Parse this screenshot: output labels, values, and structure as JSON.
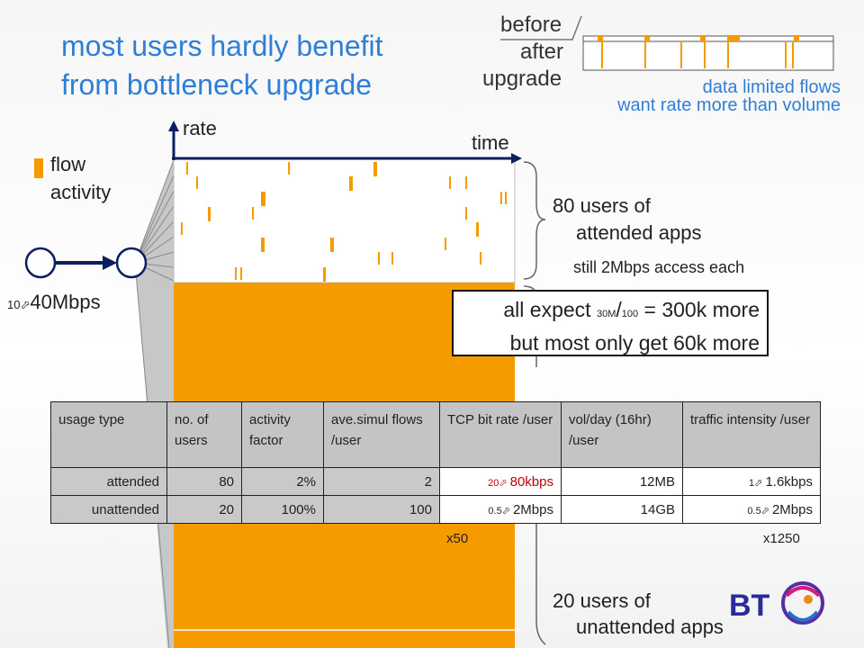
{
  "title": {
    "line1": "most users hardly benefit",
    "line2": "from bottleneck upgrade"
  },
  "legend": {
    "before": "before",
    "after": "after",
    "upgrade": "upgrade",
    "data_limited_1": "data limited flows",
    "data_limited_2": "want rate more than volume"
  },
  "axes": {
    "rate": "rate",
    "time": "time"
  },
  "flow_activity": {
    "line1": "flow",
    "line2": "activity"
  },
  "link": {
    "from": "10",
    "to": "40Mbps"
  },
  "attended": {
    "line1": "80 users of",
    "line2": "attended apps",
    "note": "still 2Mbps access each"
  },
  "callout": {
    "prefix": "all expect ",
    "num": "30M",
    "den": "100",
    "suffix": " = 300k more",
    "line2": "but most only get 60k more"
  },
  "unattended": {
    "line1": "20 users of",
    "line2": "unattended apps"
  },
  "table": {
    "headers": [
      "usage type",
      "no. of users",
      "activity factor",
      "ave.simul flows /user",
      "TCP bit rate /user",
      "vol/day (16hr) /user",
      "traffic intensity /user"
    ],
    "rows": [
      {
        "type": "attended",
        "users": "80",
        "activity": "2%",
        "flows": "2",
        "tcp_from": "20",
        "tcp_to": "80kbps",
        "vol": "12MB",
        "int_from": "1",
        "int_to": "1.6kbps"
      },
      {
        "type": "unattended",
        "users": "20",
        "activity": "100%",
        "flows": "100",
        "tcp_from": "0.5",
        "tcp_to": "2Mbps",
        "vol": "14GB",
        "int_from": "0.5",
        "int_to": "2Mbps"
      }
    ]
  },
  "multipliers": {
    "tcp": "x50",
    "intensity": "x1250"
  },
  "logo": {
    "text": "BT"
  },
  "colors": {
    "orange": "#f59b00",
    "title_blue": "#2f7fd6",
    "navy": "#0b1e60",
    "grey": "#c7c7c7"
  }
}
